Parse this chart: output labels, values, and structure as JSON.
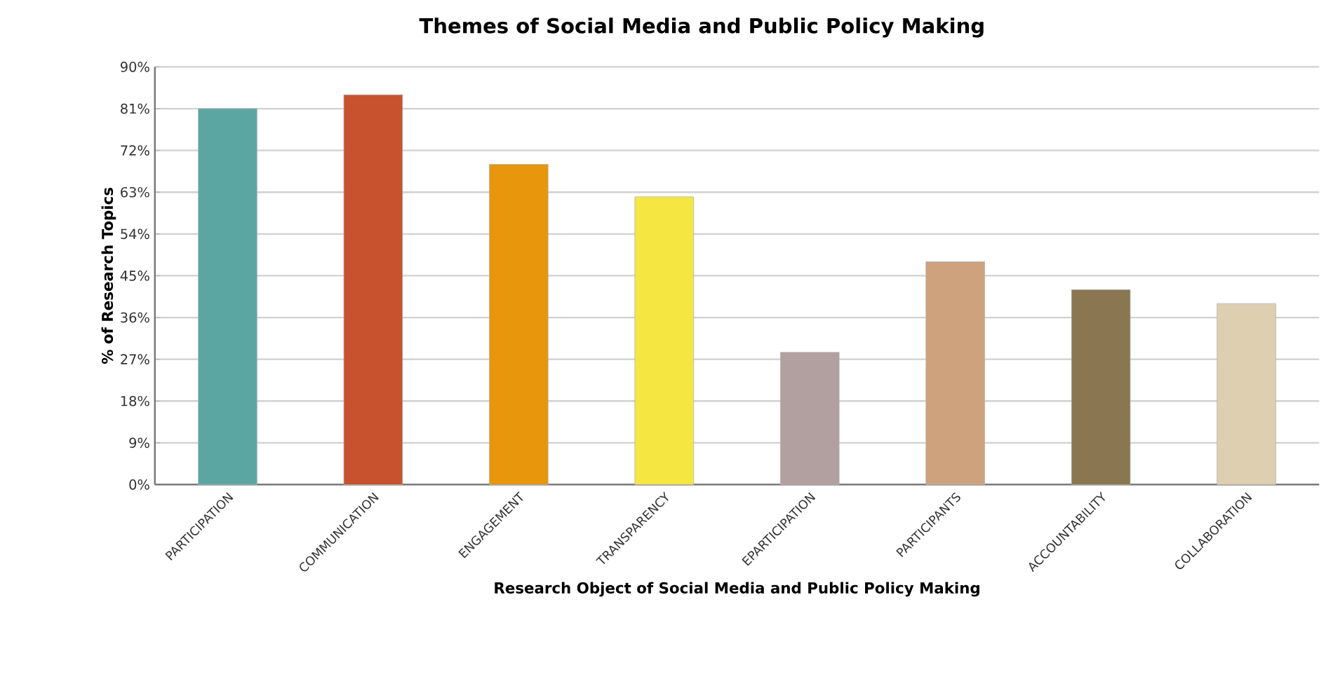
{
  "chart_data": {
    "type": "bar",
    "title": "Themes of Social Media and Public Policy Making",
    "xlabel": "Research Object of Social Media and Public Policy Making",
    "ylabel": "% of Research Topics",
    "categories": [
      "PARTICIPATION",
      "COMMUNICATION",
      "ENGAGEMENT",
      "TRANSPARENCY",
      "EPARTICIPATION",
      "PARTICIPANTS",
      "ACCOUNTABILITY",
      "COLLABORATION"
    ],
    "values": [
      81,
      84,
      69,
      62,
      28.5,
      48,
      42,
      39
    ],
    "colors": [
      "#5ba6a2",
      "#c8522e",
      "#e8960c",
      "#f5e642",
      "#b29fa0",
      "#cda27d",
      "#8a7650",
      "#ddcfb0"
    ],
    "ylim": [
      0,
      90
    ],
    "yticks": [
      {
        "value": 0,
        "label": "0%"
      },
      {
        "value": 9,
        "label": "9%"
      },
      {
        "value": 18,
        "label": "18%"
      },
      {
        "value": 27,
        "label": "27%"
      },
      {
        "value": 36,
        "label": "36%"
      },
      {
        "value": 45,
        "label": "45%"
      },
      {
        "value": 54,
        "label": "54%"
      },
      {
        "value": 63,
        "label": "63%"
      },
      {
        "value": 72,
        "label": "72%"
      },
      {
        "value": 81,
        "label": "81%"
      },
      {
        "value": 90,
        "label": "90%"
      }
    ],
    "grid": "y"
  }
}
